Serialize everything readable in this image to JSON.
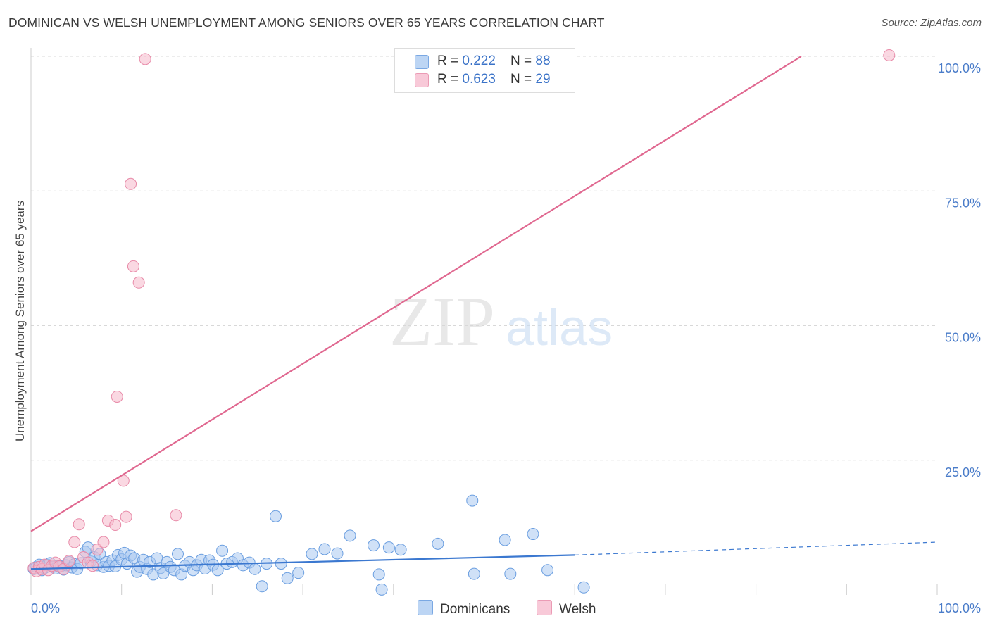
{
  "title": "DOMINICAN VS WELSH UNEMPLOYMENT AMONG SENIORS OVER 65 YEARS CORRELATION CHART",
  "source": "Source: ZipAtlas.com",
  "watermark": {
    "zip": "ZIP",
    "atlas": "atlas"
  },
  "legend": {
    "rows": [
      {
        "r_label": "R = ",
        "r_value": "0.222",
        "n_label": "N = ",
        "n_value": "88"
      },
      {
        "r_label": "R = ",
        "r_value": "0.623",
        "n_label": "N = ",
        "n_value": "29"
      }
    ]
  },
  "bottom_legend": {
    "dominicans": "Dominicans",
    "welsh": "Welsh"
  },
  "colors": {
    "dominican_fill": "#a9c8f0",
    "dominican_stroke": "#6a9ee0",
    "dominican_line": "#3b78d0",
    "welsh_fill": "#f6b8cb",
    "welsh_stroke": "#e88aa8",
    "welsh_line": "#e06890",
    "grid": "#d8d8d8",
    "tick_text": "#4a7cc9"
  },
  "chart_data": {
    "type": "scatter",
    "xlabel": "",
    "ylabel": "Unemployment Among Seniors over 65 years",
    "xlim": [
      0,
      100
    ],
    "ylim": [
      0,
      100
    ],
    "x_tick_labels": [
      "0.0%",
      "100.0%"
    ],
    "y_ticks": [
      {
        "value": 25,
        "label": "25.0%"
      },
      {
        "value": 50,
        "label": "50.0%"
      },
      {
        "value": 75,
        "label": "75.0%"
      },
      {
        "value": 100,
        "label": "100.0%"
      }
    ],
    "series": [
      {
        "name": "Dominicans",
        "r": 0.222,
        "n": 88,
        "trend": {
          "x0": 0,
          "y0": 4.8,
          "x1": 60,
          "y1": 7.4,
          "dashed_to_x": 100,
          "dashed_to_y": 9.8
        },
        "points": [
          [
            0.3,
            4.8
          ],
          [
            0.6,
            5.2
          ],
          [
            0.9,
            5.6
          ],
          [
            1.2,
            4.6
          ],
          [
            1.5,
            5.0
          ],
          [
            1.8,
            5.6
          ],
          [
            2.1,
            5.9
          ],
          [
            2.4,
            5.2
          ],
          [
            2.7,
            4.9
          ],
          [
            3.0,
            5.4
          ],
          [
            3.3,
            5.3
          ],
          [
            3.6,
            4.7
          ],
          [
            3.9,
            5.5
          ],
          [
            4.2,
            6.1
          ],
          [
            4.5,
            5.1
          ],
          [
            4.8,
            5.7
          ],
          [
            5.1,
            4.8
          ],
          [
            5.5,
            5.9
          ],
          [
            6.0,
            8.0
          ],
          [
            6.3,
            8.8
          ],
          [
            6.6,
            6.2
          ],
          [
            7.0,
            7.0
          ],
          [
            7.3,
            5.5
          ],
          [
            7.6,
            7.6
          ],
          [
            8.0,
            5.2
          ],
          [
            8.3,
            6.1
          ],
          [
            8.6,
            5.4
          ],
          [
            9.0,
            6.4
          ],
          [
            9.3,
            5.3
          ],
          [
            9.6,
            7.4
          ],
          [
            10.0,
            6.6
          ],
          [
            10.3,
            7.8
          ],
          [
            10.6,
            5.8
          ],
          [
            11.0,
            7.3
          ],
          [
            11.4,
            6.8
          ],
          [
            11.7,
            4.3
          ],
          [
            12.0,
            5.2
          ],
          [
            12.4,
            6.5
          ],
          [
            12.8,
            4.8
          ],
          [
            13.1,
            6.1
          ],
          [
            13.5,
            3.8
          ],
          [
            13.9,
            6.8
          ],
          [
            14.3,
            5.0
          ],
          [
            14.6,
            4.0
          ],
          [
            15.0,
            6.1
          ],
          [
            15.4,
            5.2
          ],
          [
            15.8,
            4.6
          ],
          [
            16.2,
            7.6
          ],
          [
            16.6,
            3.8
          ],
          [
            17.0,
            5.4
          ],
          [
            17.5,
            6.1
          ],
          [
            17.9,
            4.6
          ],
          [
            18.3,
            5.5
          ],
          [
            18.8,
            6.5
          ],
          [
            19.2,
            4.9
          ],
          [
            19.7,
            6.4
          ],
          [
            20.1,
            5.6
          ],
          [
            20.6,
            4.6
          ],
          [
            21.1,
            8.2
          ],
          [
            21.6,
            5.8
          ],
          [
            22.2,
            6.1
          ],
          [
            22.8,
            6.8
          ],
          [
            23.4,
            5.5
          ],
          [
            24.1,
            6.0
          ],
          [
            24.7,
            4.8
          ],
          [
            25.5,
            1.6
          ],
          [
            26.0,
            5.8
          ],
          [
            27.0,
            14.6
          ],
          [
            27.6,
            5.8
          ],
          [
            28.3,
            3.1
          ],
          [
            29.5,
            4.1
          ],
          [
            31.0,
            7.6
          ],
          [
            32.4,
            8.5
          ],
          [
            33.8,
            7.7
          ],
          [
            35.2,
            11.0
          ],
          [
            37.8,
            9.2
          ],
          [
            38.4,
            3.8
          ],
          [
            38.7,
            1.0
          ],
          [
            39.5,
            8.8
          ],
          [
            40.8,
            8.4
          ],
          [
            44.9,
            9.5
          ],
          [
            48.7,
            17.5
          ],
          [
            48.9,
            3.9
          ],
          [
            52.3,
            10.2
          ],
          [
            52.9,
            3.9
          ],
          [
            55.4,
            11.3
          ],
          [
            57.0,
            4.6
          ],
          [
            61.0,
            1.4
          ]
        ]
      },
      {
        "name": "Welsh",
        "r": 0.623,
        "n": 29,
        "trend": {
          "x0": 0,
          "y0": 11.8,
          "x1": 85,
          "y1": 100
        },
        "points": [
          [
            0.3,
            5.0
          ],
          [
            0.6,
            4.4
          ],
          [
            0.9,
            5.2
          ],
          [
            1.2,
            4.8
          ],
          [
            1.5,
            5.6
          ],
          [
            1.9,
            4.6
          ],
          [
            2.3,
            5.4
          ],
          [
            2.7,
            6.0
          ],
          [
            3.1,
            5.3
          ],
          [
            3.6,
            4.8
          ],
          [
            4.2,
            6.3
          ],
          [
            4.8,
            9.8
          ],
          [
            5.3,
            13.1
          ],
          [
            5.8,
            7.0
          ],
          [
            6.3,
            6.0
          ],
          [
            6.8,
            5.4
          ],
          [
            7.3,
            8.4
          ],
          [
            8.0,
            9.8
          ],
          [
            8.5,
            13.8
          ],
          [
            9.3,
            13.0
          ],
          [
            9.5,
            36.8
          ],
          [
            10.2,
            21.2
          ],
          [
            10.5,
            14.5
          ],
          [
            11.0,
            76.3
          ],
          [
            11.3,
            61.0
          ],
          [
            11.9,
            58.0
          ],
          [
            12.6,
            99.5
          ],
          [
            16.0,
            14.8
          ],
          [
            94.7,
            100.2
          ]
        ]
      }
    ]
  }
}
